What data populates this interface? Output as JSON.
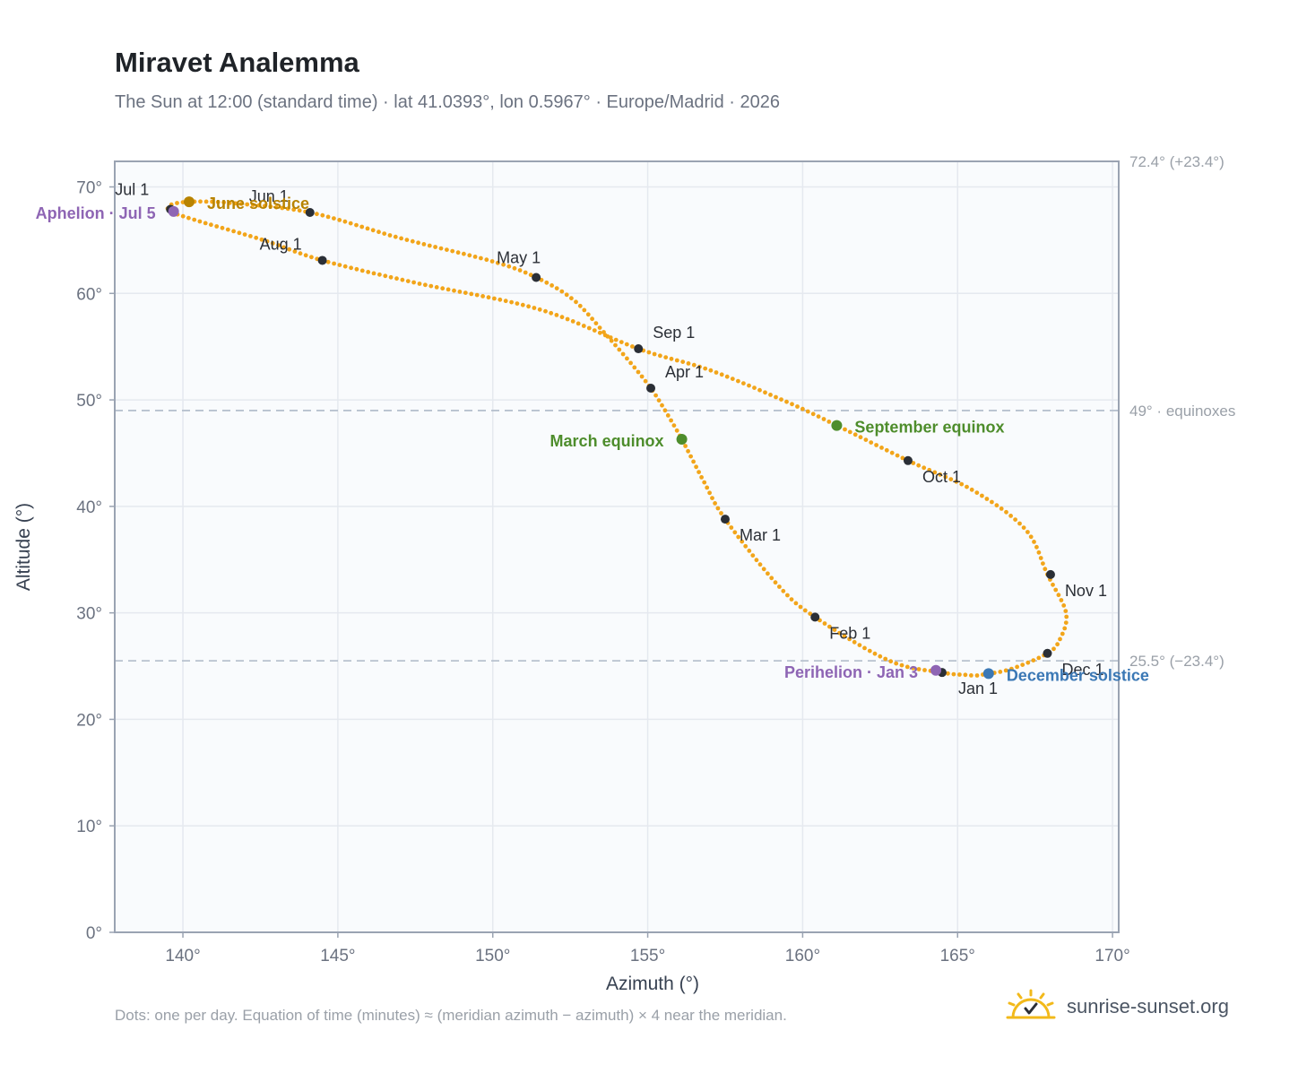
{
  "header": {
    "title": "Miravet Analemma",
    "subtitle": "The Sun at 12:00 (standard time) · lat 41.0393°, lon 0.5967° · Europe/Madrid · 2026"
  },
  "footer": {
    "note": "Dots: one per day. Equation of time (minutes) ≈ (meridian azimuth − azimuth) × 4 near the meridian.",
    "brand": "sunrise-sunset.org",
    "brand_icon": "sun-check-icon"
  },
  "colors": {
    "analemma": "#f2a51a",
    "month_marker": "#2b2f36",
    "equinox": "#4e8d2c",
    "solstice_june": "#b88300",
    "solstice_december": "#3b78b5",
    "apsis": "#8e65b4",
    "reference_line": "#b8c2cf",
    "grid": "#e5e9ef",
    "plot_bg": "#f9fbfd",
    "axis": "#9aa3b2"
  },
  "chart_data": {
    "type": "scatter",
    "xlabel": "Azimuth (°)",
    "ylabel": "Altitude (°)",
    "xlim": [
      137.8,
      170.2
    ],
    "ylim": [
      0,
      72.4
    ],
    "x_ticks": [
      140,
      145,
      150,
      155,
      160,
      165,
      170
    ],
    "x_tick_labels": [
      "140°",
      "145°",
      "150°",
      "155°",
      "160°",
      "165°",
      "170°"
    ],
    "y_ticks": [
      0,
      10,
      20,
      30,
      40,
      50,
      60,
      70
    ],
    "y_tick_labels": [
      "0°",
      "10°",
      "20°",
      "30°",
      "40°",
      "50°",
      "60°",
      "70°"
    ],
    "grid": true,
    "reference_lines": [
      {
        "y": 72.4,
        "label": "72.4° (+23.4°)"
      },
      {
        "y": 49.0,
        "label": "49° · equinoxes"
      },
      {
        "y": 25.5,
        "label": "25.5° (−23.4°)"
      }
    ],
    "series": [
      {
        "daily_path_anchors": [
          [
            164.5,
            24.4
          ],
          [
            162.8,
            25.5
          ],
          [
            160.4,
            29.6
          ],
          [
            159.2,
            32.6
          ],
          [
            157.5,
            38.8
          ],
          [
            156.8,
            42.4
          ],
          [
            156.1,
            46.3
          ],
          [
            155.5,
            49.3
          ],
          [
            155.1,
            51.1
          ],
          [
            154.5,
            53.3
          ],
          [
            153.6,
            56.3
          ],
          [
            152.6,
            59.4
          ],
          [
            151.4,
            61.5
          ],
          [
            150.0,
            63.0
          ],
          [
            147.0,
            65.2
          ],
          [
            144.1,
            67.6
          ],
          [
            141.5,
            68.5
          ],
          [
            140.2,
            68.6
          ],
          [
            139.6,
            68.3
          ],
          [
            139.6,
            67.7
          ],
          [
            140.5,
            66.8
          ],
          [
            142.6,
            65.0
          ],
          [
            144.5,
            63.1
          ],
          [
            147.5,
            61.0
          ],
          [
            151.5,
            58.5
          ],
          [
            154.7,
            54.8
          ],
          [
            157.0,
            52.8
          ],
          [
            159.5,
            49.8
          ],
          [
            161.1,
            47.6
          ],
          [
            163.4,
            44.3
          ],
          [
            165.5,
            41.5
          ],
          [
            167.2,
            37.8
          ],
          [
            167.9,
            33.6
          ],
          [
            168.5,
            30.0
          ],
          [
            168.3,
            27.5
          ],
          [
            167.9,
            26.2
          ],
          [
            166.8,
            24.8
          ],
          [
            166.0,
            24.3
          ],
          [
            165.2,
            24.2
          ],
          [
            164.5,
            24.4
          ]
        ]
      }
    ],
    "month_markers": [
      {
        "label": "Jan 1",
        "x": 164.5,
        "y": 24.4
      },
      {
        "label": "Feb 1",
        "x": 160.4,
        "y": 29.6
      },
      {
        "label": "Mar 1",
        "x": 157.5,
        "y": 38.8
      },
      {
        "label": "Apr 1",
        "x": 155.1,
        "y": 51.1
      },
      {
        "label": "May 1",
        "x": 151.4,
        "y": 61.5
      },
      {
        "label": "Jun 1",
        "x": 144.1,
        "y": 67.6
      },
      {
        "label": "Jul 1",
        "x": 139.6,
        "y": 67.9
      },
      {
        "label": "Aug 1",
        "x": 144.5,
        "y": 63.1
      },
      {
        "label": "Sep 1",
        "x": 154.7,
        "y": 54.8
      },
      {
        "label": "Oct 1",
        "x": 163.4,
        "y": 44.3
      },
      {
        "label": "Nov 1",
        "x": 168.0,
        "y": 33.6
      },
      {
        "label": "Dec 1",
        "x": 167.9,
        "y": 26.2
      }
    ],
    "events": [
      {
        "label": "March equinox",
        "x": 156.1,
        "y": 46.3,
        "kind": "equinox"
      },
      {
        "label": "September equinox",
        "x": 161.1,
        "y": 47.6,
        "kind": "equinox"
      },
      {
        "label": "June solstice",
        "x": 140.2,
        "y": 68.6,
        "kind": "solstice_june"
      },
      {
        "label": "December solstice",
        "x": 166.0,
        "y": 24.3,
        "kind": "solstice_december"
      },
      {
        "label": "Aphelion · Jul 5",
        "x": 139.7,
        "y": 67.7,
        "kind": "apsis"
      },
      {
        "label": "Perihelion · Jan 3",
        "x": 164.3,
        "y": 24.6,
        "kind": "apsis"
      }
    ]
  }
}
